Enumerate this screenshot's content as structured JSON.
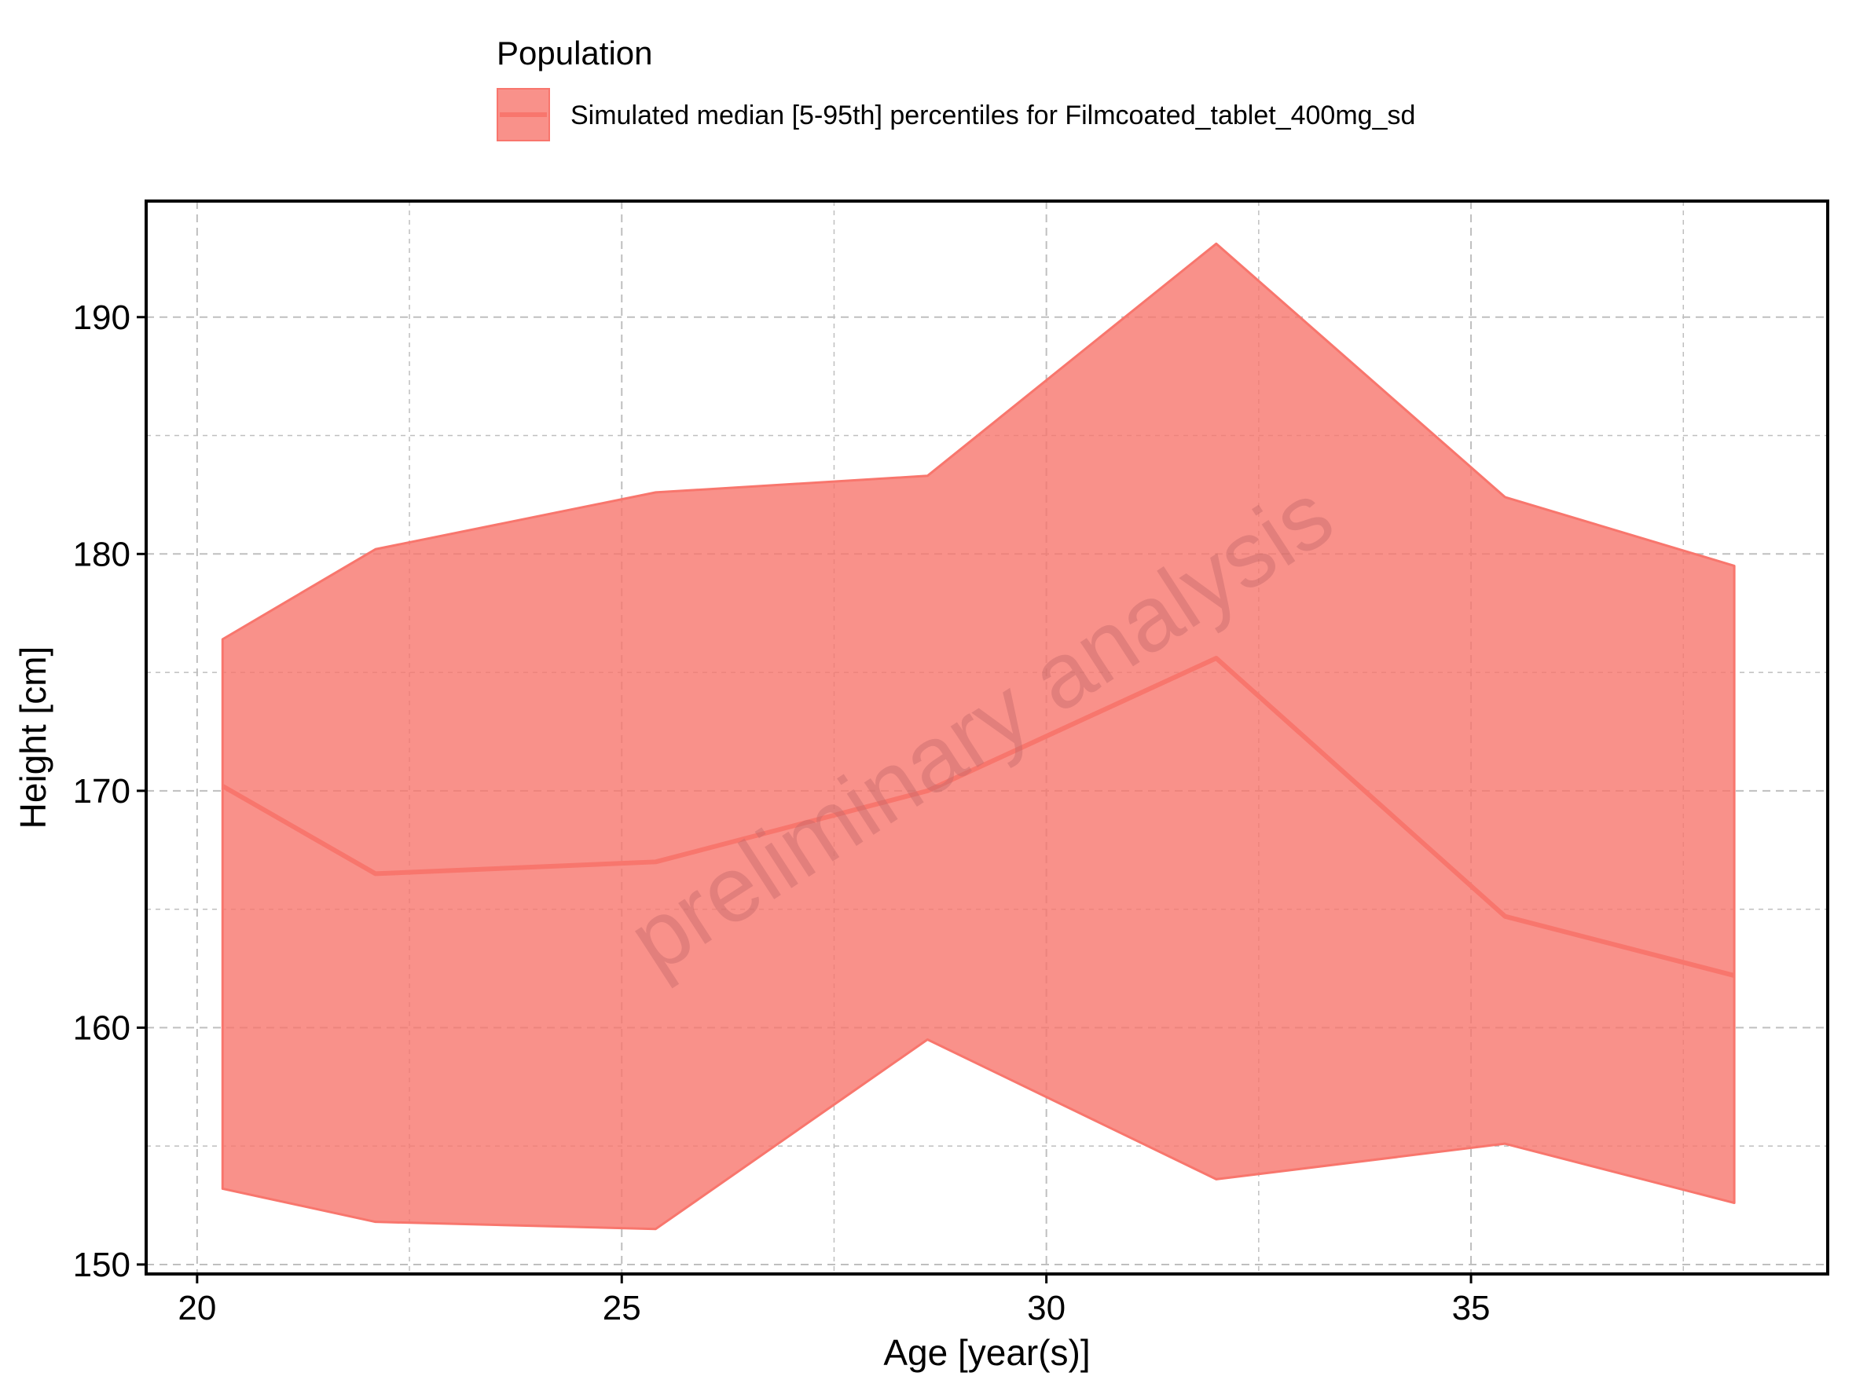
{
  "legend": {
    "title": "Population",
    "entry": "Simulated  median [5-95th] percentiles for Filmcoated_tablet_400mg_sd"
  },
  "watermark": "preliminary analysis",
  "colors": {
    "band_fill": "#F8766D",
    "band_alpha": 0.8,
    "line": "#F8766D",
    "grid": "#bfbfbf",
    "watermark": "#c66a6a"
  },
  "chart_data": {
    "type": "area",
    "xlabel": "Age [year(s)]",
    "ylabel": "Height [cm]",
    "xlim": [
      19.4,
      39.2
    ],
    "ylim": [
      149.6,
      194.9
    ],
    "xticks": [
      20,
      25,
      30,
      35
    ],
    "yticks": [
      150,
      160,
      170,
      180,
      190
    ],
    "grid": true,
    "legend_position": "top",
    "series": [
      {
        "name": "Simulated  median [5-95th] percentiles for Filmcoated_tablet_400mg_sd",
        "x": [
          20.3,
          22.1,
          25.4,
          28.6,
          32.0,
          35.4,
          38.1
        ],
        "median": [
          170.2,
          166.5,
          167.0,
          170.0,
          175.6,
          164.7,
          162.2
        ],
        "p5": [
          153.2,
          151.8,
          151.5,
          159.5,
          153.6,
          155.1,
          152.6
        ],
        "p95": [
          176.4,
          180.2,
          182.6,
          183.3,
          193.1,
          182.4,
          179.5
        ]
      }
    ]
  }
}
